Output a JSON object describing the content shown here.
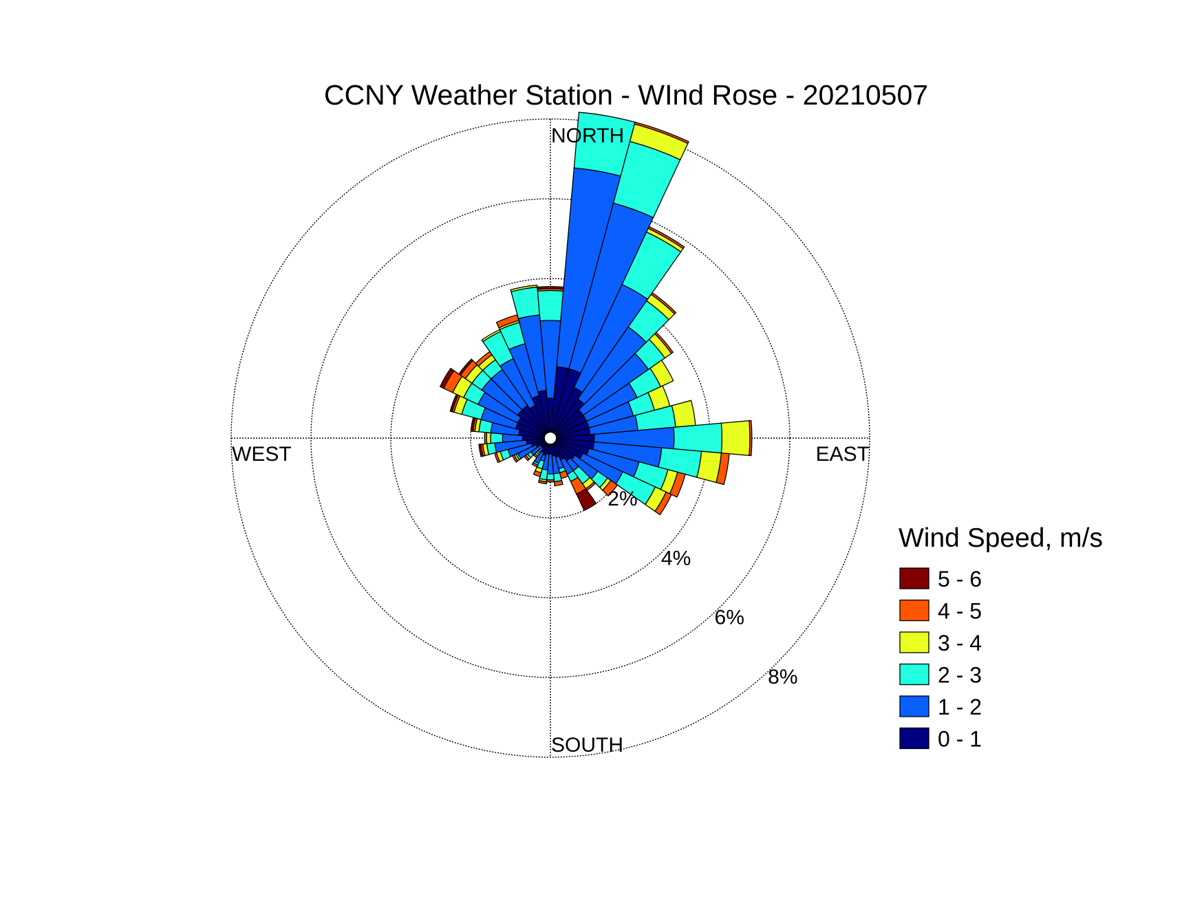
{
  "chart_data": {
    "type": "wind-rose",
    "title": "CCNY Weather Station - WInd Rose - 20210507",
    "direction_labels": {
      "north": "NORTH",
      "south": "SOUTH",
      "east": "EAST",
      "west": "WEST"
    },
    "radial_unit": "%",
    "radial_ticks": [
      {
        "value": 2,
        "label": "2%"
      },
      {
        "value": 4,
        "label": "4%"
      },
      {
        "value": 6,
        "label": "6%"
      },
      {
        "value": 8,
        "label": "8%"
      }
    ],
    "rmax": 8,
    "grid": true,
    "legend": {
      "title": "Wind Speed, m/s",
      "placement": "right",
      "entries": [
        {
          "label": "5 - 6",
          "color": "#800000"
        },
        {
          "label": "4 - 5",
          "color": "#ff5500"
        },
        {
          "label": "3 - 4",
          "color": "#e8ff20"
        },
        {
          "label": "2 - 3",
          "color": "#20ffe0"
        },
        {
          "label": "1 - 2",
          "color": "#0a5fff"
        },
        {
          "label": "0 - 1",
          "color": "#000080"
        }
      ]
    },
    "bins": [
      "0 - 1",
      "1 - 2",
      "2 - 3",
      "3 - 4",
      "4 - 5",
      "5 - 6"
    ],
    "bin_colors": [
      "#000080",
      "#0a5fff",
      "#20ffe0",
      "#e8ff20",
      "#ff5500",
      "#800000"
    ],
    "sector_width_deg": 10,
    "directions_deg": [
      0,
      10,
      20,
      30,
      40,
      50,
      60,
      70,
      80,
      90,
      100,
      110,
      120,
      130,
      140,
      150,
      160,
      170,
      180,
      190,
      200,
      210,
      220,
      230,
      240,
      250,
      260,
      270,
      280,
      290,
      300,
      310,
      320,
      330,
      340,
      350
    ],
    "cumulative_percent": [
      [
        1.0,
        2.95,
        3.7,
        3.7,
        3.75,
        3.8
      ],
      [
        1.8,
        6.8,
        8.2,
        8.2,
        8.2,
        8.2
      ],
      [
        1.8,
        6.1,
        7.7,
        8.15,
        8.2,
        8.2
      ],
      [
        1.4,
        4.25,
        5.7,
        5.8,
        5.85,
        5.85
      ],
      [
        1.2,
        3.4,
        4.2,
        4.4,
        4.45,
        4.45
      ],
      [
        1.0,
        3.0,
        3.5,
        3.7,
        3.75,
        3.75
      ],
      [
        1.0,
        2.4,
        3.05,
        3.4,
        3.4,
        3.4
      ],
      [
        1.0,
        2.15,
        2.7,
        3.1,
        3.1,
        3.1
      ],
      [
        1.0,
        2.2,
        3.15,
        3.65,
        3.65,
        3.65
      ],
      [
        1.1,
        3.1,
        4.3,
        5.0,
        5.05,
        5.05
      ],
      [
        1.1,
        2.8,
        3.8,
        4.3,
        4.5,
        4.5
      ],
      [
        1.0,
        2.3,
        3.05,
        3.3,
        3.5,
        3.5
      ],
      [
        0.9,
        2.0,
        2.9,
        3.2,
        3.35,
        3.35
      ],
      [
        0.75,
        1.45,
        1.75,
        1.85,
        2.05,
        2.05
      ],
      [
        0.7,
        1.0,
        1.4,
        1.55,
        1.6,
        1.6
      ],
      [
        0.6,
        1.0,
        1.2,
        1.2,
        1.55,
        2.0
      ],
      [
        0.5,
        0.8,
        0.9,
        0.9,
        1.05,
        1.05
      ],
      [
        0.45,
        0.9,
        1.1,
        1.1,
        1.2,
        1.2
      ],
      [
        0.4,
        0.9,
        1.05,
        1.05,
        1.1,
        1.1
      ],
      [
        0.4,
        0.8,
        1.05,
        1.1,
        1.15,
        1.15
      ],
      [
        0.45,
        0.6,
        0.8,
        0.9,
        1.0,
        1.0
      ],
      [
        0.4,
        0.7,
        0.75,
        0.75,
        0.8,
        0.8
      ],
      [
        0.3,
        0.45,
        0.5,
        0.55,
        0.6,
        0.6
      ],
      [
        0.3,
        0.6,
        0.7,
        0.75,
        0.8,
        0.8
      ],
      [
        0.4,
        0.9,
        0.95,
        1.0,
        1.05,
        1.05
      ],
      [
        0.5,
        1.1,
        1.3,
        1.4,
        1.45,
        1.45
      ],
      [
        0.6,
        1.4,
        1.6,
        1.7,
        1.75,
        1.8
      ],
      [
        0.7,
        1.2,
        1.5,
        1.6,
        1.65,
        1.65
      ],
      [
        0.8,
        1.5,
        1.8,
        1.9,
        1.95,
        2.0
      ],
      [
        0.9,
        1.8,
        2.3,
        2.5,
        2.55,
        2.6
      ],
      [
        0.9,
        2.0,
        2.4,
        2.7,
        2.95,
        3.05
      ],
      [
        1.0,
        2.1,
        2.4,
        2.6,
        2.75,
        2.8
      ],
      [
        1.0,
        2.1,
        2.4,
        2.55,
        2.65,
        2.65
      ],
      [
        0.9,
        2.2,
        2.95,
        3.0,
        3.0,
        3.0
      ],
      [
        1.1,
        2.45,
        3.0,
        3.05,
        3.2,
        3.2
      ],
      [
        1.2,
        3.1,
        3.8,
        3.85,
        3.85,
        3.85
      ]
    ]
  }
}
